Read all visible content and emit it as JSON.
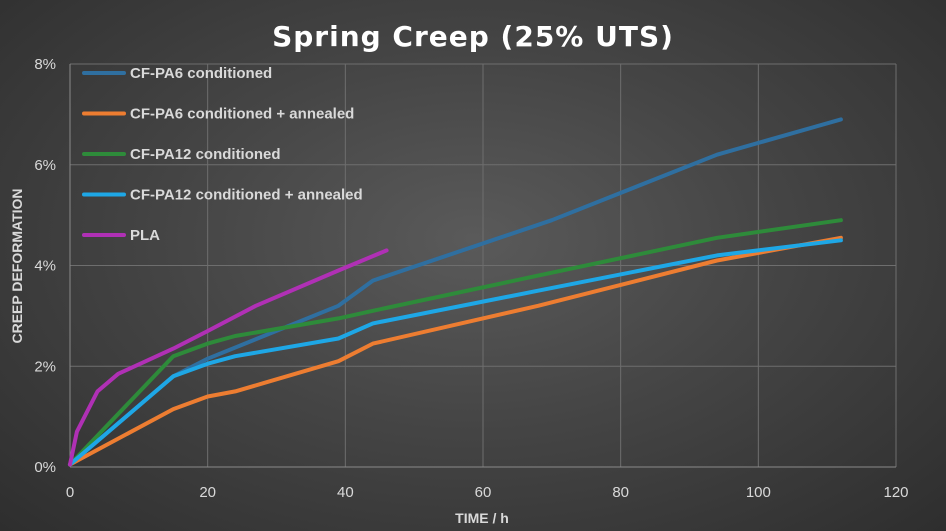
{
  "chart_data": {
    "type": "line",
    "title": "Spring Creep (25% UTS)",
    "xlabel": "TIME / h",
    "ylabel": "CREEP DEFORMATION",
    "xlim": [
      0,
      120
    ],
    "ylim": [
      0,
      8
    ],
    "x_ticks": [
      "0",
      "20",
      "40",
      "60",
      "80",
      "100",
      "120"
    ],
    "y_ticks": [
      "0%",
      "2%",
      "4%",
      "6%",
      "8%"
    ],
    "grid": true,
    "legend_position": "top-left",
    "series": [
      {
        "name": "CF-PA6 conditioned",
        "color": "#2f6fa0",
        "x": [
          0,
          15,
          20,
          39,
          44,
          70,
          94,
          112
        ],
        "y": [
          0.05,
          1.8,
          2.15,
          3.2,
          3.7,
          4.9,
          6.2,
          6.9
        ]
      },
      {
        "name": "CF-PA6 conditioned + annealed",
        "color": "#ed7d31",
        "x": [
          0,
          15,
          20,
          24,
          39,
          44,
          68,
          94,
          112
        ],
        "y": [
          0.05,
          1.15,
          1.4,
          1.5,
          2.1,
          2.45,
          3.2,
          4.1,
          4.55
        ]
      },
      {
        "name": "CF-PA12 conditioned",
        "color": "#2e8b3a",
        "x": [
          0,
          15,
          20,
          24,
          39,
          44,
          68,
          94,
          112
        ],
        "y": [
          0.05,
          2.2,
          2.45,
          2.6,
          2.95,
          3.1,
          3.8,
          4.55,
          4.9
        ]
      },
      {
        "name": "CF-PA12 conditioned + annealed",
        "color": "#1ea7e6",
        "x": [
          0,
          15,
          20,
          24,
          39,
          44,
          68,
          94,
          112
        ],
        "y": [
          0.05,
          1.8,
          2.05,
          2.2,
          2.55,
          2.85,
          3.5,
          4.2,
          4.5
        ]
      },
      {
        "name": "PLA",
        "color": "#b030b5",
        "x": [
          0,
          1,
          4,
          7,
          15,
          20,
          27,
          39,
          46
        ],
        "y": [
          0.05,
          0.7,
          1.5,
          1.85,
          2.35,
          2.7,
          3.2,
          3.9,
          4.3
        ]
      }
    ]
  }
}
